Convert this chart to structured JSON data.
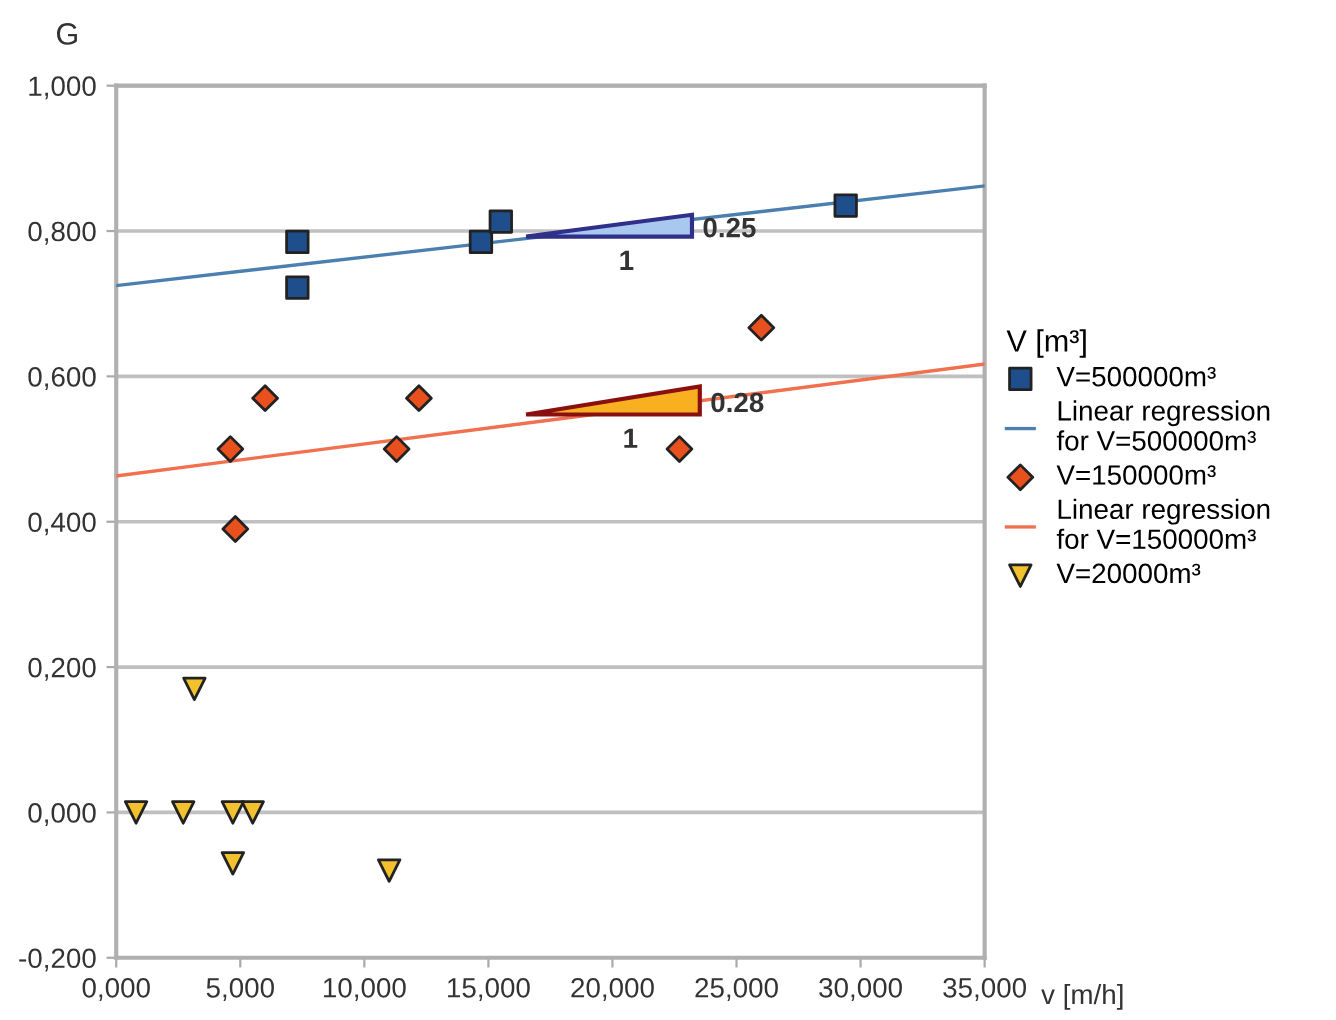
{
  "chart_data": {
    "type": "scatter",
    "xlabel": "v [m/h]",
    "ylabel": "G",
    "legend_title": "V [m³]",
    "xlim": [
      0,
      35
    ],
    "ylim": [
      -0.2,
      1.0
    ],
    "xticks": [
      {
        "value": 0,
        "label": "0,000"
      },
      {
        "value": 5,
        "label": "5,000"
      },
      {
        "value": 10,
        "label": "10,000"
      },
      {
        "value": 15,
        "label": "15,000"
      },
      {
        "value": 20,
        "label": "20,000"
      },
      {
        "value": 25,
        "label": "25,000"
      },
      {
        "value": 30,
        "label": "30,000"
      },
      {
        "value": 35,
        "label": "35,000"
      }
    ],
    "yticks": [
      {
        "value": -0.2,
        "label": "-0,200"
      },
      {
        "value": 0,
        "label": "0,000"
      },
      {
        "value": 0.2,
        "label": "0,200"
      },
      {
        "value": 0.4,
        "label": "0,400"
      },
      {
        "value": 0.6,
        "label": "0,600"
      },
      {
        "value": 0.8,
        "label": "0,800"
      },
      {
        "value": 1.0,
        "label": "1,000"
      }
    ],
    "grid": "y",
    "legend": "right",
    "series": [
      {
        "name": "V=500000m³",
        "marker": "square",
        "color": "#1f4e8c",
        "x": [
          7.3,
          7.3,
          14.7,
          15.5,
          29.4
        ],
        "values": [
          0.785,
          0.722,
          0.785,
          0.813,
          0.835
        ]
      },
      {
        "name": "Linear regression\nfor V=500000m³",
        "type": "line",
        "color": "#4a7fb0",
        "x": [
          0,
          35
        ],
        "values": [
          0.725,
          0.862
        ]
      },
      {
        "name": "V=150000m³",
        "marker": "diamond",
        "color": "#e8501e",
        "x": [
          4.6,
          6.0,
          4.8,
          11.3,
          12.2,
          22.7,
          26.0
        ],
        "values": [
          0.5,
          0.57,
          0.39,
          0.5,
          0.57,
          0.5,
          0.667
        ]
      },
      {
        "name": "Linear regression\nfor V=150000m³",
        "type": "line",
        "color": "#f07050",
        "x": [
          0,
          35
        ],
        "values": [
          0.463,
          0.617
        ]
      },
      {
        "name": "V=20000m³",
        "marker": "triangle",
        "color": "#f2c12e",
        "x": [
          0.8,
          2.7,
          3.15,
          4.7,
          5.5,
          4.7,
          11.0
        ],
        "values": [
          0,
          0,
          0.17,
          0,
          0,
          -0.07,
          -0.08
        ]
      }
    ],
    "annotations": [
      "1",
      "0.25",
      "1",
      "0.28"
    ]
  }
}
